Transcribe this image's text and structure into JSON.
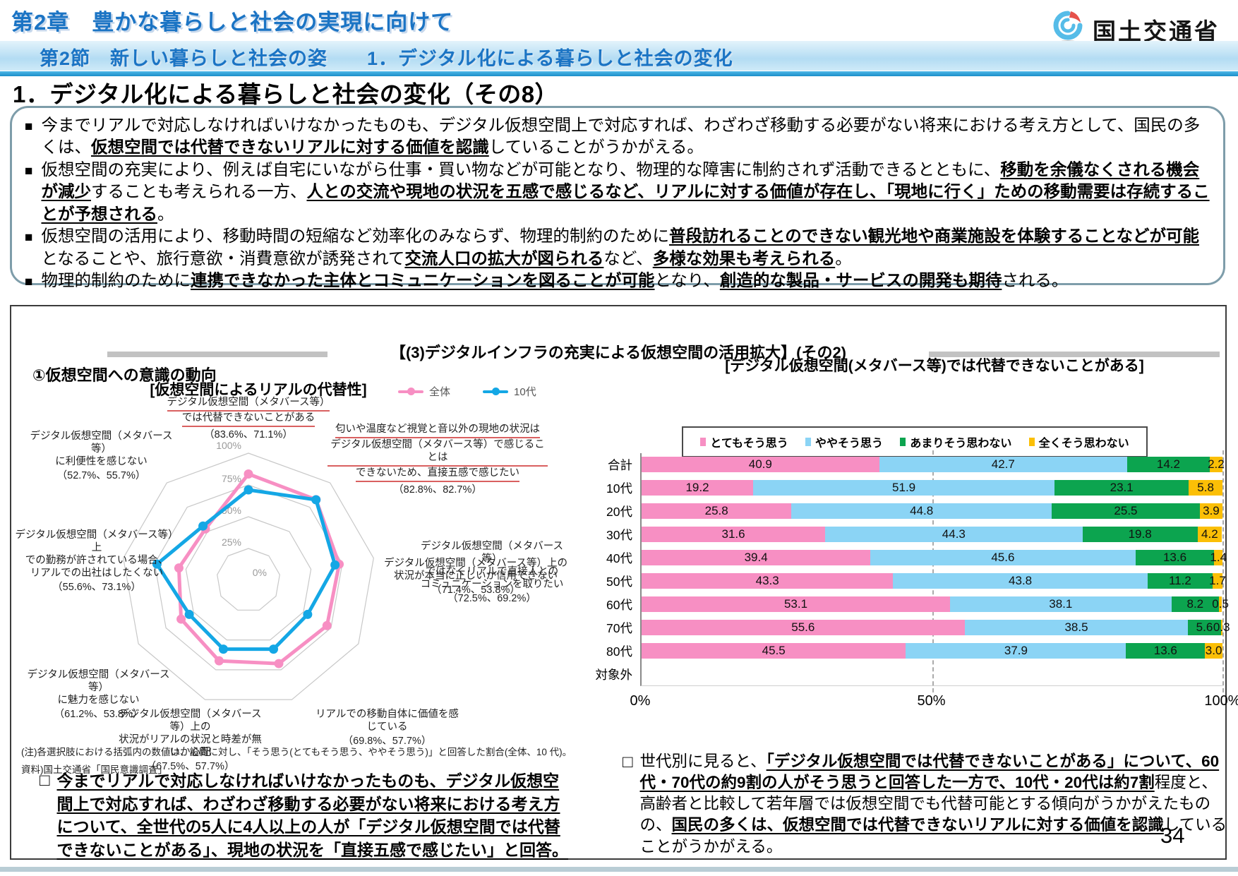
{
  "header": {
    "chapter": "第2章　豊かな暮らしと社会の実現に向けて",
    "section": "第2節　新しい暮らしと社会の姿　　1．デジタル化による暮らしと社会の変化",
    "ministry": "国土交通省",
    "page_title": "1．デジタル化による暮らしと社会の変化（その8）",
    "page_number": "34"
  },
  "bullet_marker": "■",
  "takeaway_marker": "□",
  "summary_bullets": [
    {
      "segments": [
        {
          "t": "今までリアルで対応しなければいけなかったものも、デジタル仮想空間上で対応すれば、わざわざ移動する必要がない将来における考え方として、国民の多くは、",
          "em": false
        },
        {
          "t": "仮想空間では代替できないリアルに対する価値を認識",
          "em": true
        },
        {
          "t": "していることがうかがえる。",
          "em": false
        }
      ]
    },
    {
      "segments": [
        {
          "t": "仮想空間の充実により、例えば自宅にいながら仕事・買い物などが可能となり、物理的な障害に制約されず活動できるとともに、",
          "em": false
        },
        {
          "t": "移動を余儀なくされる機会が減少",
          "em": true
        },
        {
          "t": "することも考えられる一方、",
          "em": false
        },
        {
          "t": "人との交流や現地の状況を五感で感じるなど、リアルに対する価値が存在し、「現地に行く」ための移動需要は存続することが予想される",
          "em": true
        },
        {
          "t": "。",
          "em": false
        }
      ]
    },
    {
      "segments": [
        {
          "t": "仮想空間の活用により、移動時間の短縮など効率化のみならず、物理的制約のために",
          "em": false
        },
        {
          "t": "普段訪れることのできない観光地や商業施設を体験することなどが可能",
          "em": true
        },
        {
          "t": "となることや、旅行意欲・消費意欲が誘発されて",
          "em": false
        },
        {
          "t": "交流人口の拡大が図られる",
          "em": true
        },
        {
          "t": "など、",
          "em": false
        },
        {
          "t": "多様な効果も考えられる",
          "em": true
        },
        {
          "t": "。",
          "em": false
        }
      ]
    },
    {
      "segments": [
        {
          "t": "物理的制約のために",
          "em": false
        },
        {
          "t": "連携できなかった主体とコミュニケーションを図ることが可能",
          "em": true
        },
        {
          "t": "となり、",
          "em": false
        },
        {
          "t": "創造的な製品・サービスの開発も期待",
          "em": true
        },
        {
          "t": "される。",
          "em": false
        }
      ]
    }
  ],
  "figure": {
    "main_title": "【(3)デジタルインフラの充実による仮想空間の活用拡大】(その2)",
    "left_subtitle": "①仮想空間への意識の動向",
    "radar_title": "[仮想空間によるリアルの代替性]",
    "radar_note1": "(注)各選択肢における括弧内の数値は、設問に対し、「そう思う(とてもそう思う、ややそう思う)」と回答した割合(全体、10 代)。",
    "radar_note2": "資料)国土交通省「国民意識調査」",
    "bar_title": "[デジタル仮想空間(メタバース等)では代替できないことがある]",
    "left_takeaway": {
      "segments": [
        {
          "t": "今までリアルで対応しなければいけなかったものも、デジタル仮想空間上で対応すれば、わざわざ移動する必要がない将来における考え方について、全世代の5人に4人以上の人が「デジタル仮想空間では代替できないことがある」、現地の状況を「直接五感で感じたい」と回答。",
          "em": true
        }
      ]
    },
    "right_takeaway": {
      "segments": [
        {
          "t": "世代別に見ると、",
          "em": false
        },
        {
          "t": "「デジタル仮想空間では代替できないことがある」について、60代・70代の約9割の人がそう思うと回答した一方で、10代・20代は約7割",
          "em": true
        },
        {
          "t": "程度と、高齢者と比較して若年層では仮想空間でも代替可能とする傾向がうかがえたものの、",
          "em": false
        },
        {
          "t": "国民の多くは、仮想空間では代替できないリアルに対する価値を認識",
          "em": true
        },
        {
          "t": "していることがうかがえる。",
          "em": false
        }
      ]
    }
  },
  "chart_data": [
    {
      "type": "radar",
      "title": "[仮想空間によるリアルの代替性]",
      "rings": [
        "100%",
        "75%",
        "50%",
        "25%",
        "0%"
      ],
      "rlim": [
        0,
        100
      ],
      "axes": [
        {
          "lines": [
            "デジタル仮想空間（メタバース等）",
            "では代替できないことがある"
          ],
          "values_label": "（83.6%、71.1%）",
          "red_underline": true
        },
        {
          "lines": [
            "匂いや温度など視覚と音以外の現地の状況は",
            "デジタル仮想空間（メタバース等）で感じることは",
            "できないため、直接五感で感じたい"
          ],
          "values_label": "（82.8%、82.7%）",
          "red_underline": true
        },
        {
          "lines": [
            "デジタル仮想空間（メタバース等）",
            "ではなくリアルで直接人との",
            "コミュニケーションを取りたい"
          ],
          "values_label": "（72.5%、69.2%）",
          "red_underline": false
        },
        {
          "lines": [
            "デジタル仮想空間（メタバース等）上の",
            "状況が本当に正しいか信用できない"
          ],
          "values_label": "（71.4%、53.8%）",
          "red_underline": false
        },
        {
          "lines": [
            "リアルでの移動自体に価値を感じている"
          ],
          "values_label": "（69.8%、57.7%）",
          "red_underline": false
        },
        {
          "lines": [
            "デジタル仮想空間（メタバース等）上の",
            "状況がリアルの状況と時差が無いか心配"
          ],
          "values_label": "（67.5%、57.7%）",
          "red_underline": false
        },
        {
          "lines": [
            "デジタル仮想空間（メタバース等）",
            "に魅力を感じない"
          ],
          "values_label": "（61.2%、53.8%）",
          "red_underline": false
        },
        {
          "lines": [
            "デジタル仮想空間（メタバース等）上",
            "での勤務が許されている場合、",
            "リアルでの出社はしたくない"
          ],
          "values_label": "（55.6%、73.1%）",
          "red_underline": false
        },
        {
          "lines": [
            "デジタル仮想空間（メタバース等）",
            "に利便性を感じない"
          ],
          "values_label": "（52.7%、55.7%）",
          "red_underline": false
        }
      ],
      "series": [
        {
          "name": "全体",
          "color": "#F78FC3",
          "values": [
            83.6,
            82.8,
            72.5,
            71.4,
            69.8,
            67.5,
            61.2,
            55.6,
            52.7
          ]
        },
        {
          "name": "10代",
          "color": "#14A7E5",
          "values": [
            71.1,
            82.7,
            69.2,
            53.8,
            57.7,
            57.7,
            53.8,
            73.1,
            55.7
          ]
        }
      ]
    },
    {
      "type": "bar",
      "stacked": true,
      "orientation": "horizontal",
      "title": "[デジタル仮想空間(メタバース等)では代替できないことがある]",
      "categories": [
        "合計",
        "10代",
        "20代",
        "30代",
        "40代",
        "50代",
        "60代",
        "70代",
        "80代",
        "対象外"
      ],
      "series": [
        {
          "name": "とてもそう思う",
          "color": "#F78FC3",
          "values": [
            40.9,
            19.2,
            25.8,
            31.6,
            39.4,
            43.3,
            53.1,
            55.6,
            45.5,
            null
          ]
        },
        {
          "name": "ややそう思う",
          "color": "#8BD4F5",
          "values": [
            42.7,
            51.9,
            44.8,
            44.3,
            45.6,
            43.8,
            38.1,
            38.5,
            37.9,
            null
          ]
        },
        {
          "name": "あまりそう思わない",
          "color": "#0CA44F",
          "values": [
            14.2,
            23.1,
            25.5,
            19.8,
            13.6,
            11.2,
            8.2,
            5.6,
            13.6,
            null
          ]
        },
        {
          "name": "全くそう思わない",
          "color": "#FBBF06",
          "values": [
            2.2,
            5.8,
            3.9,
            4.2,
            1.4,
            1.7,
            0.5,
            0.3,
            3.0,
            null
          ]
        }
      ],
      "x_ticks": [
        "0%",
        "50%",
        "100%"
      ],
      "xlim": [
        0,
        100
      ]
    }
  ]
}
